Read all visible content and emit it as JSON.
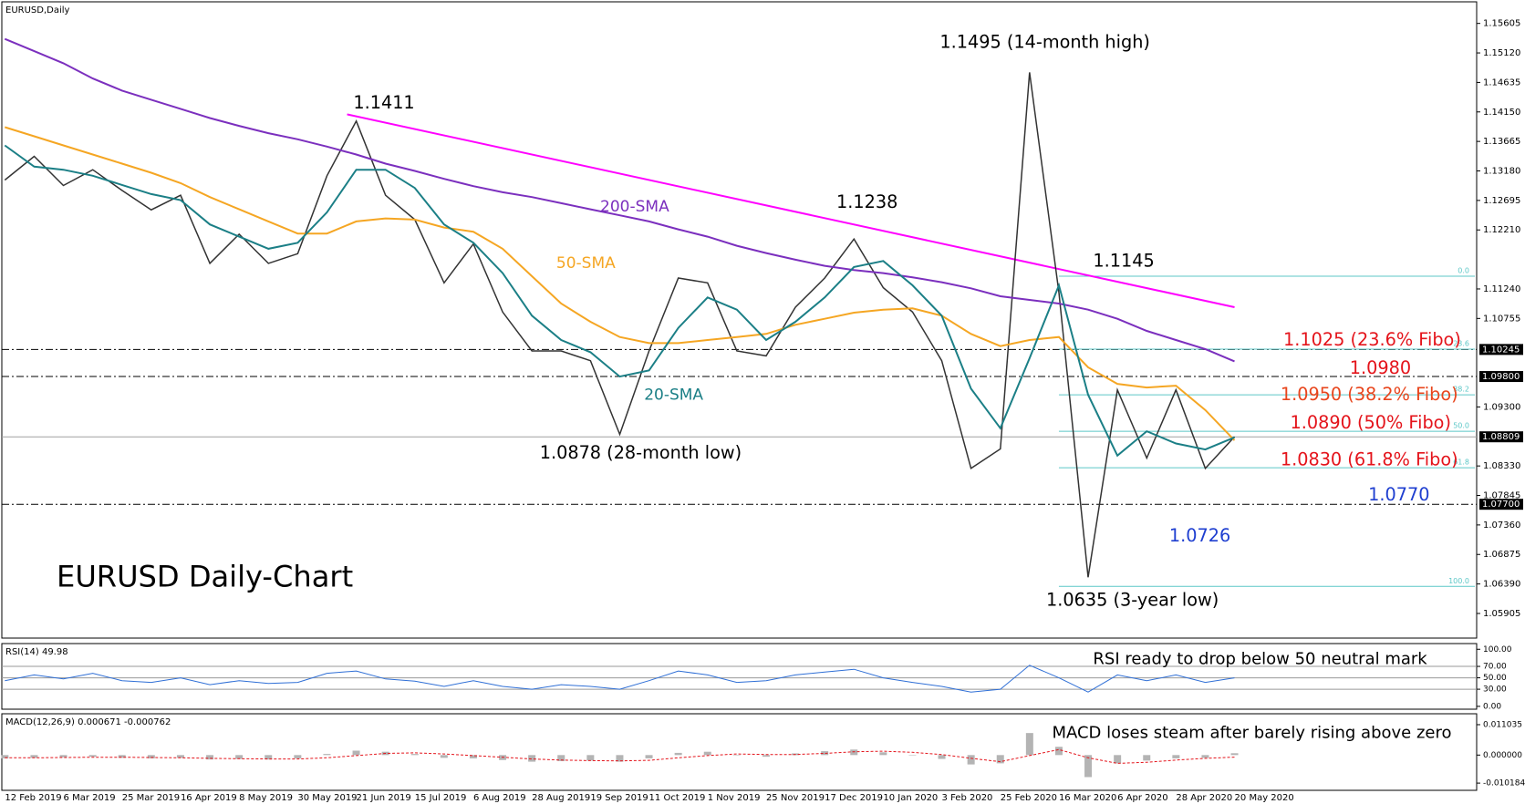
{
  "chart_data": [
    {
      "type": "line",
      "title": "EURUSD,Daily",
      "categories": [
        "12 Feb 2019",
        null,
        "6 Mar 2019",
        null,
        "25 Mar 2019",
        null,
        "16 Apr 2019",
        null,
        "8 May 2019",
        null,
        "30 May 2019",
        null,
        "21 Jun 2019",
        null,
        "15 Jul 2019",
        null,
        "6 Aug 2019",
        null,
        "28 Aug 2019",
        null,
        "19 Sep 2019",
        null,
        "11 Oct 2019",
        null,
        "1 Nov 2019",
        null,
        "25 Nov 2019",
        null,
        "17 Dec 2019",
        null,
        "10 Jan 2020",
        null,
        "3 Feb 2020",
        null,
        "25 Feb 2020",
        null,
        "16 Mar 2020",
        null,
        "6 Apr 2020",
        null,
        "28 Apr 2020",
        null,
        "20 May 2020"
      ],
      "series": [
        {
          "color": "#333333",
          "values": [
            1.1303,
            1.1342,
            1.1294,
            1.132,
            1.1286,
            1.1254,
            1.1278,
            1.1166,
            1.1214,
            1.1166,
            1.1182,
            1.131,
            1.14,
            1.1278,
            1.1238,
            1.1134,
            1.1198,
            1.1086,
            1.1022,
            1.1022,
            1.1006,
            1.0885,
            1.1022,
            1.1142,
            1.1134,
            1.1022,
            1.1014,
            1.1094,
            1.1142,
            1.1206,
            1.1126,
            1.1086,
            1.1006,
            1.0829,
            1.0861,
            1.148,
            1.1118,
            1.065,
            1.0958,
            1.0846,
            1.0958,
            1.0829,
            1.0881
          ]
        },
        {
          "name": "200-SMA",
          "color": "#7b2fbe",
          "values": [
            1.1535,
            1.1515,
            1.1495,
            1.147,
            1.145,
            1.1435,
            1.142,
            1.1405,
            1.1392,
            1.138,
            1.137,
            1.1358,
            1.1345,
            1.133,
            1.1318,
            1.1305,
            1.1293,
            1.1283,
            1.1275,
            1.1265,
            1.1255,
            1.1245,
            1.1235,
            1.1222,
            1.121,
            1.1195,
            1.1183,
            1.1172,
            1.1162,
            1.1155,
            1.115,
            1.1143,
            1.1135,
            1.1125,
            1.1112,
            1.1106,
            1.11,
            1.109,
            1.1075,
            1.1055,
            1.104,
            1.1025,
            1.1005
          ]
        },
        {
          "name": "50-SMA",
          "color": "#f5a623",
          "values": [
            1.139,
            1.1375,
            1.136,
            1.1345,
            1.133,
            1.1315,
            1.1298,
            1.1275,
            1.1255,
            1.1235,
            1.1215,
            1.1215,
            1.1235,
            1.124,
            1.1238,
            1.1225,
            1.1218,
            1.119,
            1.1145,
            1.11,
            1.107,
            1.1045,
            1.1035,
            1.1035,
            1.104,
            1.1045,
            1.105,
            1.1065,
            1.1075,
            1.1085,
            1.109,
            1.1092,
            1.108,
            1.105,
            1.103,
            1.104,
            1.1045,
            1.0995,
            1.0968,
            1.0962,
            1.0965,
            1.0925,
            1.0875
          ]
        },
        {
          "name": "20-SMA",
          "color": "#1b7f86",
          "values": [
            1.136,
            1.1325,
            1.132,
            1.131,
            1.1295,
            1.128,
            1.127,
            1.123,
            1.121,
            1.119,
            1.12,
            1.125,
            1.132,
            1.132,
            1.129,
            1.123,
            1.12,
            1.115,
            1.108,
            1.104,
            1.102,
            1.098,
            1.099,
            1.106,
            1.111,
            1.109,
            1.104,
            1.107,
            1.111,
            1.116,
            1.117,
            1.113,
            1.108,
            1.096,
            1.0895,
            1.101,
            1.113,
            1.095,
            1.085,
            1.089,
            1.087,
            1.086,
            1.088
          ]
        }
      ],
      "ylim": [
        1.055,
        1.1596
      ],
      "yticks": [
        1.15605,
        {
          "value": 1.1512,
          "label": "1.15120"
        },
        1.14635,
        {
          "value": 1.1415,
          "label": "1.14150"
        },
        1.13665,
        {
          "value": 1.1318,
          "label": "1.13180"
        },
        1.12695,
        {
          "value": 1.1221,
          "label": "1.12210"
        },
        {
          "value": 1.1124,
          "label": "1.11240"
        },
        1.10755,
        {
          "value": 1.093,
          "label": "1.09300"
        },
        {
          "value": 1.0833,
          "label": "1.08330"
        },
        1.07845,
        {
          "value": 1.0736,
          "label": "1.07360"
        },
        1.06875,
        {
          "value": 1.0639,
          "label": "1.06390"
        },
        1.05905
      ],
      "grid": false,
      "price_levels": [
        {
          "value": 1.10245,
          "label": "1.10245",
          "style": "dash-dot"
        },
        {
          "value": 1.098,
          "label": "1.09800",
          "style": "dash-dot"
        },
        {
          "value": 1.08809,
          "label": "1.08809",
          "style": "solid"
        },
        {
          "value": 1.077,
          "label": "1.07700",
          "style": "dash-dot"
        }
      ],
      "fibonacci": {
        "color": "#5cc7c7",
        "start": "16 Mar 2020",
        "levels": [
          {
            "label": "0.0",
            "price": 1.1145
          },
          {
            "label": "23.6",
            "price": 1.1025
          },
          {
            "label": "38.2",
            "price": 1.095
          },
          {
            "label": "50.0",
            "price": 1.089
          },
          {
            "label": "61.8",
            "price": 1.083
          },
          {
            "label": "100.0",
            "price": 1.0635
          }
        ]
      },
      "trendline": {
        "color": "#ff00ff",
        "x": [
          "21 Jun 2019",
          "20 May 2020"
        ],
        "y": [
          1.1411,
          1.1094
        ]
      },
      "annotations": [
        {
          "text": "EURUSD Daily-Chart",
          "color": "#000000"
        },
        {
          "text": "1.1411",
          "color": "#000000"
        },
        {
          "text": "1.1238",
          "color": "#000000"
        },
        {
          "text": "1.1495 (14-month high)",
          "color": "#000000"
        },
        {
          "text": "1.1145",
          "color": "#000000"
        },
        {
          "text": "1.0878 (28-month low)",
          "color": "#000000"
        },
        {
          "text": "1.0635 (3-year low)",
          "color": "#000000"
        },
        {
          "text": "1.0726",
          "color": "#1f3fd0"
        },
        {
          "text": "1.1025 (23.6% Fibo)",
          "color": "#e4141b"
        },
        {
          "text": "1.0980",
          "color": "#e4141b"
        },
        {
          "text": "1.0950 (38.2% Fibo)",
          "color": "#e8451c"
        },
        {
          "text": "1.0890 (50% Fibo)",
          "color": "#e4141b"
        },
        {
          "text": "1.0830 (61.8% Fibo)",
          "color": "#e4141b"
        },
        {
          "text": "1.0770",
          "color": "#1f3fd0"
        }
      ]
    },
    {
      "type": "line",
      "title": "RSI(14) 49.98",
      "series": [
        {
          "color": "#2f6fd6",
          "values": [
            45,
            55,
            48,
            58,
            45,
            42,
            50,
            38,
            45,
            40,
            42,
            58,
            62,
            48,
            44,
            35,
            45,
            35,
            30,
            38,
            35,
            30,
            45,
            62,
            55,
            42,
            45,
            55,
            60,
            65,
            50,
            42,
            35,
            25,
            30,
            72,
            50,
            25,
            55,
            45,
            55,
            42,
            49.98
          ]
        }
      ],
      "ylim": [
        -5,
        110
      ],
      "yticks": [
        {
          "value": 100,
          "label": "100.00"
        },
        {
          "value": 70,
          "label": "70.00"
        },
        {
          "value": 50,
          "label": "50.00"
        },
        {
          "value": 30,
          "label": "30.00"
        },
        {
          "value": 0,
          "label": "0.00"
        }
      ],
      "levels": [
        70,
        50,
        30
      ],
      "annotation": "RSI ready to drop below 50 neutral mark"
    },
    {
      "type": "bar",
      "title": "MACD(12,26,9) 0.000671 -0.000762",
      "series": [
        {
          "color": "#b4b4b4",
          "values": [
            -0.0012,
            -0.001,
            -0.0008,
            -0.0006,
            -0.001,
            -0.0012,
            -0.001,
            -0.0016,
            -0.0014,
            -0.0016,
            -0.0012,
            0.0004,
            0.0016,
            0.0012,
            0.0004,
            -0.001,
            -0.0012,
            -0.0018,
            -0.0024,
            -0.0022,
            -0.002,
            -0.0024,
            -0.0012,
            0.0008,
            0.0012,
            0,
            -0.0006,
            0.0006,
            0.0014,
            0.002,
            0.001,
            0,
            -0.0014,
            -0.0034,
            -0.003,
            0.008,
            0.003,
            -0.008,
            -0.003,
            -0.002,
            -0.0012,
            -0.001,
            0.000671
          ]
        },
        {
          "type": "line",
          "color": "#e4141b",
          "values": [
            -0.001,
            -0.001,
            -0.0009,
            -0.0008,
            -0.0008,
            -0.0009,
            -0.001,
            -0.0012,
            -0.0013,
            -0.0014,
            -0.0014,
            -0.001,
            -0.0002,
            0.0006,
            0.0008,
            0.0004,
            -0.0002,
            -0.0008,
            -0.0014,
            -0.0018,
            -0.002,
            -0.0021,
            -0.0019,
            -0.001,
            -0.0002,
            0.0004,
            0.0002,
            0.0002,
            0.0006,
            0.0012,
            0.0014,
            0.001,
            0.0002,
            -0.0012,
            -0.0024,
            -0.0002,
            0.002,
            -0.001,
            -0.003,
            -0.0026,
            -0.0018,
            -0.0012,
            -0.000762
          ]
        }
      ],
      "ylim": [
        -0.0128,
        0.015
      ],
      "yticks": [
        0.011035,
        {
          "value": 0,
          "label": "0.000000"
        },
        -0.010184
      ],
      "annotation": "MACD loses steam after barely rising above zero"
    }
  ]
}
